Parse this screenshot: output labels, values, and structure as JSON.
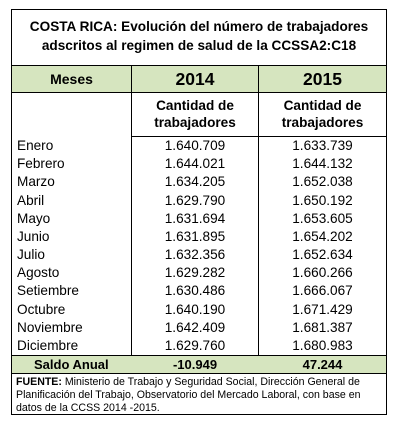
{
  "title": {
    "line1": "COSTA RICA: Evolución del número de trabajadores",
    "line2": "adscritos al regimen de salud de la CCSSA2:C18"
  },
  "header": {
    "meses": "Meses",
    "year1": "2014",
    "year2": "2015",
    "sub1_line1": "Cantidad de",
    "sub1_line2": "trabajadores",
    "sub2_line1": "Cantidad de",
    "sub2_line2": "trabajadores"
  },
  "rows": [
    {
      "mes": "Enero",
      "v2014": "1.640.709",
      "v2015": "1.633.739"
    },
    {
      "mes": "Febrero",
      "v2014": "1.644.021",
      "v2015": "1.644.132"
    },
    {
      "mes": "Marzo",
      "v2014": "1.634.205",
      "v2015": "1.652.038"
    },
    {
      "mes": "Abril",
      "v2014": "1.629.790",
      "v2015": "1.650.192"
    },
    {
      "mes": "Mayo",
      "v2014": "1.631.694",
      "v2015": "1.653.605"
    },
    {
      "mes": "Junio",
      "v2014": "1.631.895",
      "v2015": "1.654.202"
    },
    {
      "mes": "Julio",
      "v2014": "1.632.356",
      "v2015": "1.652.634"
    },
    {
      "mes": "Agosto",
      "v2014": "1.629.282",
      "v2015": "1.660.266"
    },
    {
      "mes": "Setiembre",
      "v2014": "1.630.486",
      "v2015": "1.666.067"
    },
    {
      "mes": "Octubre",
      "v2014": "1.640.190",
      "v2015": "1.671.429"
    },
    {
      "mes": "Noviembre",
      "v2014": "1.642.409",
      "v2015": "1.681.387"
    },
    {
      "mes": "Diciembre",
      "v2014": "1.629.760",
      "v2015": "1.680.983"
    }
  ],
  "saldo": {
    "label": "Saldo Anual",
    "v2014": "-10.949",
    "v2015": "47.244"
  },
  "note": {
    "label": "FUENTE:",
    "text": " Ministerio de Trabajo y Seguridad Social, Dirección General de Planificación del Trabajo, Observatorio del Mercado Laboral, con base en datos de la CCSS 2014 -2015."
  },
  "colors": {
    "header_band": "#d6e5bf",
    "border": "#000000"
  }
}
